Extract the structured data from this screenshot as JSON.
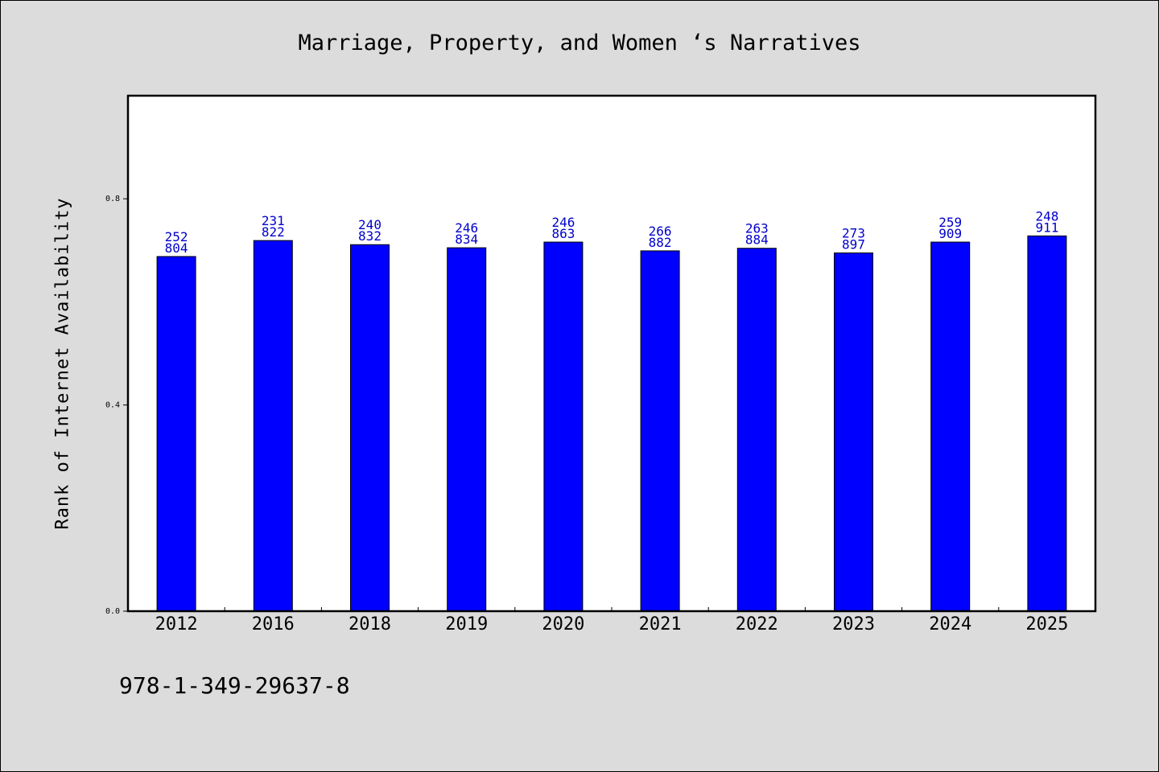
{
  "chart_data": {
    "type": "bar",
    "title": "Marriage, Property, and Women ‘s Narratives",
    "ylabel": "Rank of Internet Availability",
    "xlabel": "",
    "categories": [
      "2012",
      "2016",
      "2018",
      "2019",
      "2020",
      "2021",
      "2022",
      "2023",
      "2024",
      "2025"
    ],
    "values": [
      0.688,
      0.719,
      0.711,
      0.705,
      0.716,
      0.699,
      0.704,
      0.695,
      0.716,
      0.728
    ],
    "data_labels": [
      [
        "252",
        "804"
      ],
      [
        "231",
        "822"
      ],
      [
        "240",
        "832"
      ],
      [
        "246",
        "834"
      ],
      [
        "246",
        "863"
      ],
      [
        "266",
        "882"
      ],
      [
        "263",
        "884"
      ],
      [
        "273",
        "897"
      ],
      [
        "259",
        "909"
      ],
      [
        "248",
        "911"
      ]
    ],
    "ylim": [
      0,
      1.0
    ],
    "yticks": [
      0.0,
      0.4,
      0.8
    ],
    "ytick_labels": [
      "0.0",
      "0.4",
      "0.8"
    ],
    "grid": false,
    "bar_color": "#0000ff",
    "label_color": "#0000cc",
    "plot_background": "#ffffff",
    "page_background": "#dcdcdc"
  },
  "footer": {
    "isbn": "978-1-349-29637-8"
  }
}
